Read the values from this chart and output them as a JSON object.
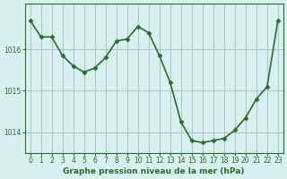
{
  "hours": [
    0,
    1,
    2,
    3,
    4,
    5,
    6,
    7,
    8,
    9,
    10,
    11,
    12,
    13,
    14,
    15,
    16,
    17,
    18,
    19,
    20,
    21,
    22,
    23
  ],
  "pressure": [
    1016.7,
    1016.3,
    1016.3,
    1015.85,
    1015.6,
    1015.45,
    1015.55,
    1015.8,
    1016.2,
    1016.25,
    1016.55,
    1016.4,
    1015.85,
    1015.2,
    1014.25,
    1013.8,
    1013.75,
    1013.8,
    1013.85,
    1014.05,
    1014.35,
    1014.8,
    1015.1,
    1016.7
  ],
  "line_color": "#2d6a2d",
  "marker_color": "#2d6a2d",
  "bg_color": "#d8f0f0",
  "grid_color": "#b0c8c8",
  "xlabel": "Graphe pression niveau de la mer (hPa)",
  "xlabel_color": "#2d6a2d",
  "tick_color": "#2d6a2d",
  "ylim": [
    1013.5,
    1017.1
  ],
  "yticks": [
    1014,
    1015,
    1016
  ],
  "xlim": [
    -0.5,
    23.5
  ],
  "xticks": [
    0,
    1,
    2,
    3,
    4,
    5,
    6,
    7,
    8,
    9,
    10,
    11,
    12,
    13,
    14,
    15,
    16,
    17,
    18,
    19,
    20,
    21,
    22,
    23
  ]
}
